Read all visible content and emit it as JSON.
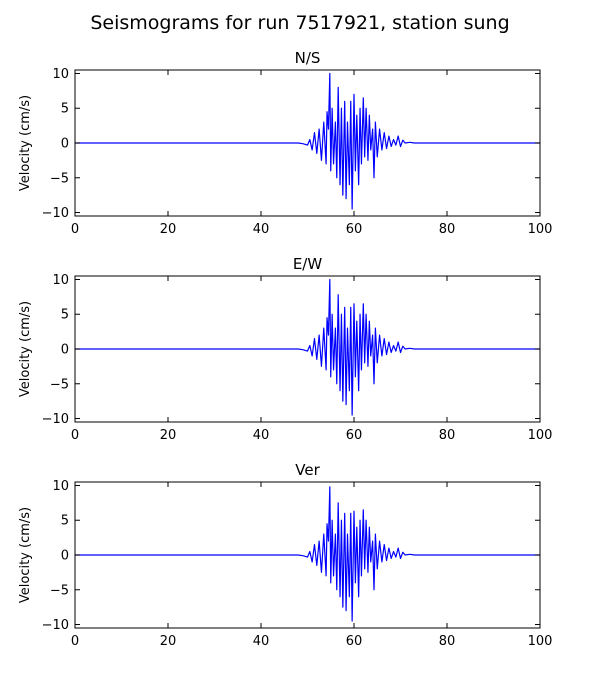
{
  "figure": {
    "title": "Seismograms for run 7517921, station sung"
  },
  "chart_data": [
    {
      "type": "line",
      "title": "N/S",
      "xlabel": "",
      "ylabel": "Velocity (cm/s)",
      "xlim": [
        0,
        100
      ],
      "ylim": [
        -10.5,
        10.5
      ],
      "xticks": [
        0,
        20,
        40,
        60,
        80,
        100
      ],
      "yticks": [
        10,
        5,
        0,
        -5,
        -10
      ],
      "xtick_labels": [
        "0",
        "20",
        "40",
        "60",
        "80",
        "100"
      ],
      "ytick_labels": [
        "10",
        "5",
        "0",
        "−5",
        "−10"
      ],
      "grid": false,
      "color": "#0000ff",
      "series": [
        {
          "x": [
            0,
            20,
            40,
            46,
            48,
            49,
            50,
            50.5,
            51,
            51.5,
            52,
            52.5,
            53,
            53.5,
            54,
            54.2,
            54.5,
            54.8,
            55,
            55.3,
            55.6,
            56,
            56.3,
            56.6,
            57,
            57.3,
            57.6,
            58,
            58.3,
            58.6,
            59,
            59.3,
            59.6,
            60,
            60.3,
            60.6,
            61,
            61.3,
            61.6,
            62,
            62.3,
            62.6,
            63,
            63.3,
            63.6,
            64,
            64.3,
            64.6,
            65,
            65.5,
            66,
            66.5,
            67,
            67.5,
            68,
            68.5,
            69,
            69.5,
            70,
            70.5,
            71,
            72,
            73,
            75,
            78,
            80,
            90,
            100
          ],
          "y": [
            0,
            0,
            0,
            0,
            0,
            -0.1,
            -0.3,
            0.5,
            -1,
            1.5,
            -1.5,
            2,
            -2.5,
            3,
            -3,
            4.5,
            2,
            10,
            -4,
            5,
            -3,
            3,
            -5,
            8,
            -6,
            5,
            -7.5,
            6,
            -8,
            3,
            -6,
            6,
            -9.5,
            7,
            -4,
            4,
            -6,
            5,
            -3,
            6.5,
            -2,
            5,
            -2.5,
            4,
            -1,
            2,
            -5,
            3,
            -2,
            2,
            -1,
            1.5,
            -0.8,
            1,
            -0.5,
            0.5,
            -0.3,
            1,
            -0.5,
            0.4,
            0,
            0.1,
            0,
            0,
            0,
            0,
            0,
            0
          ]
        }
      ]
    },
    {
      "type": "line",
      "title": "E/W",
      "xlabel": "",
      "ylabel": "Velocity (cm/s)",
      "xlim": [
        0,
        100
      ],
      "ylim": [
        -10.5,
        10.5
      ],
      "xticks": [
        0,
        20,
        40,
        60,
        80,
        100
      ],
      "yticks": [
        10,
        5,
        0,
        -5,
        -10
      ],
      "xtick_labels": [
        "0",
        "20",
        "40",
        "60",
        "80",
        "100"
      ],
      "ytick_labels": [
        "10",
        "5",
        "0",
        "−5",
        "−10"
      ],
      "grid": false,
      "color": "#0000ff",
      "series": [
        {
          "x": [
            0,
            20,
            40,
            46,
            48,
            49,
            50,
            50.5,
            51,
            51.5,
            52,
            52.5,
            53,
            53.5,
            54,
            54.2,
            54.5,
            54.8,
            55,
            55.3,
            55.6,
            56,
            56.3,
            56.6,
            57,
            57.3,
            57.6,
            58,
            58.3,
            58.6,
            59,
            59.3,
            59.6,
            60,
            60.3,
            60.6,
            61,
            61.3,
            61.6,
            62,
            62.3,
            62.6,
            63,
            63.3,
            63.6,
            64,
            64.3,
            64.6,
            65,
            65.5,
            66,
            66.5,
            67,
            67.5,
            68,
            68.5,
            69,
            69.5,
            70,
            70.5,
            71,
            72,
            73,
            75,
            78,
            80,
            90,
            100
          ],
          "y": [
            0,
            0,
            0,
            0,
            0,
            -0.1,
            -0.3,
            0.5,
            -1,
            1.5,
            -1.5,
            2,
            -2.5,
            3,
            -3,
            4.5,
            2,
            10,
            -4,
            5,
            -3,
            3,
            -5,
            7.8,
            -6,
            5,
            -7.5,
            6,
            -8,
            3,
            -6,
            6,
            -9.5,
            6.5,
            -4,
            4,
            -6,
            5,
            -3,
            6.5,
            -2,
            5,
            -2.5,
            4,
            -1,
            2,
            -5,
            3,
            -2,
            2,
            -1,
            1.5,
            -0.8,
            1,
            -0.5,
            0.5,
            -0.3,
            1,
            -0.5,
            0.4,
            0,
            0.1,
            0,
            0,
            0,
            0,
            0,
            0
          ]
        }
      ]
    },
    {
      "type": "line",
      "title": "Ver",
      "xlabel": "",
      "ylabel": "Velocity (cm/s)",
      "xlim": [
        0,
        100
      ],
      "ylim": [
        -10.5,
        10.5
      ],
      "xticks": [
        0,
        20,
        40,
        60,
        80,
        100
      ],
      "yticks": [
        10,
        5,
        0,
        -5,
        -10
      ],
      "xtick_labels": [
        "0",
        "20",
        "40",
        "60",
        "80",
        "100"
      ],
      "ytick_labels": [
        "10",
        "5",
        "0",
        "−5",
        "−10"
      ],
      "grid": false,
      "color": "#0000ff",
      "series": [
        {
          "x": [
            0,
            20,
            40,
            46,
            48,
            49,
            50,
            50.5,
            51,
            51.5,
            52,
            52.5,
            53,
            53.5,
            54,
            54.2,
            54.5,
            54.8,
            55,
            55.3,
            55.6,
            56,
            56.3,
            56.6,
            57,
            57.3,
            57.6,
            58,
            58.3,
            58.6,
            59,
            59.3,
            59.6,
            60,
            60.3,
            60.6,
            61,
            61.3,
            61.6,
            62,
            62.3,
            62.6,
            63,
            63.3,
            63.6,
            64,
            64.3,
            64.6,
            65,
            65.5,
            66,
            66.5,
            67,
            67.5,
            68,
            68.5,
            69,
            69.5,
            70,
            70.5,
            71,
            72,
            73,
            75,
            78,
            80,
            90,
            100
          ],
          "y": [
            0,
            0,
            0,
            0,
            0,
            -0.1,
            -0.3,
            0.5,
            -1,
            1.5,
            -1.5,
            2,
            -2.5,
            3,
            -3,
            4.5,
            2,
            9.8,
            -4,
            5,
            -3,
            3,
            -5,
            7.5,
            -6,
            5,
            -7.5,
            6,
            -8,
            3,
            -6,
            6,
            -9.5,
            6.3,
            -4,
            4,
            -6,
            5,
            -3,
            6.5,
            -2,
            5,
            -2.5,
            4,
            -1,
            2,
            -5,
            3,
            -2,
            2,
            -1,
            1.5,
            -0.8,
            1,
            -0.5,
            0.5,
            -0.3,
            1,
            -0.5,
            0.4,
            0,
            0.1,
            0,
            0,
            0,
            0,
            0,
            0
          ]
        }
      ]
    }
  ]
}
